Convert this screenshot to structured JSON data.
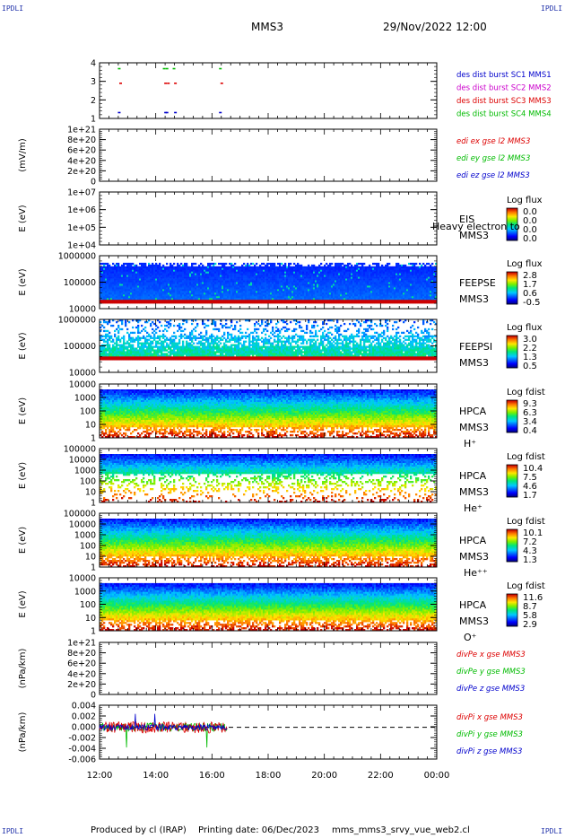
{
  "header": {
    "corner_tl": "IPDLI",
    "corner_tr": "IPDLI",
    "corner_bl": "IPDLI",
    "corner_br": "IPDLI",
    "spacecraft": "MMS3",
    "date": "29/Nov/2022 12:00"
  },
  "footer": {
    "produced_by": "Produced by cl (IRAP)",
    "print_date": "Printing date: 06/Dec/2023",
    "filename": "mms_mms3_srvy_vue_web2.cl"
  },
  "colors": {
    "blue": "#0000cc",
    "green": "#00bb00",
    "red": "#dd0000",
    "magenta": "#cc00cc"
  },
  "chart_data": [
    {
      "id": "burst",
      "type": "scatter",
      "ylabel": "",
      "yticks": [
        "1",
        "2",
        "3",
        "4"
      ],
      "ylim": [
        0.6,
        4.4
      ],
      "series": [
        {
          "name": "des dist burst SC1 MMS1",
          "color": "#0000cc",
          "y": 1,
          "x": [
            12.7,
            14.35,
            14.4,
            14.7,
            16.3
          ]
        },
        {
          "name": "des dist burst SC2 MMS2",
          "color": "#cc00cc",
          "y": 2,
          "x": []
        },
        {
          "name": "des dist burst SC3 MMS3",
          "color": "#dd0000",
          "y": 3,
          "x": [
            12.75,
            14.35,
            14.45,
            14.7,
            16.35
          ]
        },
        {
          "name": "des dist burst SC4 MMS4",
          "color": "#00bb00",
          "y": 4,
          "x": [
            12.7,
            14.3,
            14.4,
            14.65,
            16.3
          ]
        }
      ]
    },
    {
      "id": "edi",
      "type": "line",
      "ylabel": "(mV/m)",
      "yticks": [
        "0",
        "2e+20",
        "4e+20",
        "6e+20",
        "8e+20",
        "1e+21"
      ],
      "ylim": [
        0,
        1e+21
      ],
      "zero_line": true,
      "series": [
        {
          "name": "edi ex gse l2 MMS3",
          "color": "#dd0000"
        },
        {
          "name": "edi ey gse l2 MMS3",
          "color": "#00bb00"
        },
        {
          "name": "edi ez gse l2 MMS3",
          "color": "#0000cc"
        }
      ]
    },
    {
      "id": "eis",
      "type": "heatmap",
      "ylabel": "E (eV)",
      "yticks": [
        "1e+04",
        "1e+05",
        "1e+06",
        "1e+07"
      ],
      "labels": [
        "EIS",
        "MMS3"
      ],
      "overlay_text": "Heavy electron to",
      "colorbar": {
        "title": "Log flux",
        "ticks": [
          "0.0",
          "0.0",
          "0.0",
          "0.0"
        ]
      }
    },
    {
      "id": "feeps_e",
      "type": "heatmap",
      "ylabel": "E (eV)",
      "yticks": [
        "10000",
        "100000",
        "1000000"
      ],
      "labels": [
        "FEEPSE",
        "MMS3"
      ],
      "colorbar": {
        "title": "Log flux",
        "ticks": [
          "2.8",
          "1.7",
          "0.6",
          "-0.5"
        ]
      }
    },
    {
      "id": "feeps_i",
      "type": "heatmap",
      "ylabel": "E (eV)",
      "yticks": [
        "10000",
        "100000",
        "1000000"
      ],
      "labels": [
        "FEEPSI",
        "MMS3"
      ],
      "colorbar": {
        "title": "Log flux",
        "ticks": [
          "3.0",
          "2.2",
          "1.3",
          "0.5"
        ]
      }
    },
    {
      "id": "hpca_h",
      "type": "heatmap",
      "ylabel": "E (eV)",
      "yticks": [
        "1",
        "10",
        "100",
        "1000",
        "10000"
      ],
      "labels": [
        "HPCA",
        "MMS3",
        "H⁺"
      ],
      "colorbar": {
        "title": "Log fdist",
        "ticks": [
          "9.3",
          "6.3",
          "3.4",
          "0.4"
        ]
      }
    },
    {
      "id": "hpca_he",
      "type": "heatmap",
      "ylabel": "E (eV)",
      "yticks": [
        "1",
        "10",
        "100",
        "1000",
        "10000",
        "100000"
      ],
      "labels": [
        "HPCA",
        "MMS3",
        "He⁺"
      ],
      "colorbar": {
        "title": "Log fdist",
        "ticks": [
          "10.4",
          "7.5",
          "4.6",
          "1.7"
        ]
      }
    },
    {
      "id": "hpca_hepp",
      "type": "heatmap",
      "ylabel": "E (eV)",
      "yticks": [
        "1",
        "10",
        "100",
        "1000",
        "10000",
        "100000"
      ],
      "labels": [
        "HPCA",
        "MMS3",
        "He⁺⁺"
      ],
      "colorbar": {
        "title": "Log fdist",
        "ticks": [
          "10.1",
          "7.2",
          "4.3",
          "1.3"
        ]
      }
    },
    {
      "id": "hpca_o",
      "type": "heatmap",
      "ylabel": "E (eV)",
      "yticks": [
        "1",
        "10",
        "100",
        "1000",
        "10000"
      ],
      "labels": [
        "HPCA",
        "MMS3",
        "O⁺"
      ],
      "colorbar": {
        "title": "Log fdist",
        "ticks": [
          "11.6",
          "8.7",
          "5.8",
          "2.9"
        ]
      }
    },
    {
      "id": "divpe",
      "type": "line",
      "ylabel": "(nPa/km)",
      "yticks": [
        "0",
        "2e+20",
        "4e+20",
        "6e+20",
        "8e+20",
        "1e+21"
      ],
      "ylim": [
        0,
        1e+21
      ],
      "zero_line": true,
      "series": [
        {
          "name": "divPe x gse MMS3",
          "color": "#dd0000"
        },
        {
          "name": "divPe y gse MMS3",
          "color": "#00bb00"
        },
        {
          "name": "divPe z gse MMS3",
          "color": "#0000cc"
        }
      ]
    },
    {
      "id": "divpi",
      "type": "line",
      "ylabel": "(nPa/km)",
      "yticks": [
        "-0.006",
        "-0.004",
        "-0.002",
        "0.000",
        "0.002",
        "0.004"
      ],
      "ylim": [
        -0.0066,
        0.0046
      ],
      "zero_line": true,
      "data_end_hour": 16.55,
      "series": [
        {
          "name": "divPi x gse MMS3",
          "color": "#dd0000"
        },
        {
          "name": "divPi y gse MMS3",
          "color": "#00bb00"
        },
        {
          "name": "divPi z gse MMS3",
          "color": "#0000cc"
        }
      ]
    }
  ],
  "xaxis": {
    "ticks": [
      "12:00",
      "14:00",
      "16:00",
      "18:00",
      "20:00",
      "22:00",
      "00:00"
    ],
    "range_hours": [
      12,
      24
    ]
  }
}
